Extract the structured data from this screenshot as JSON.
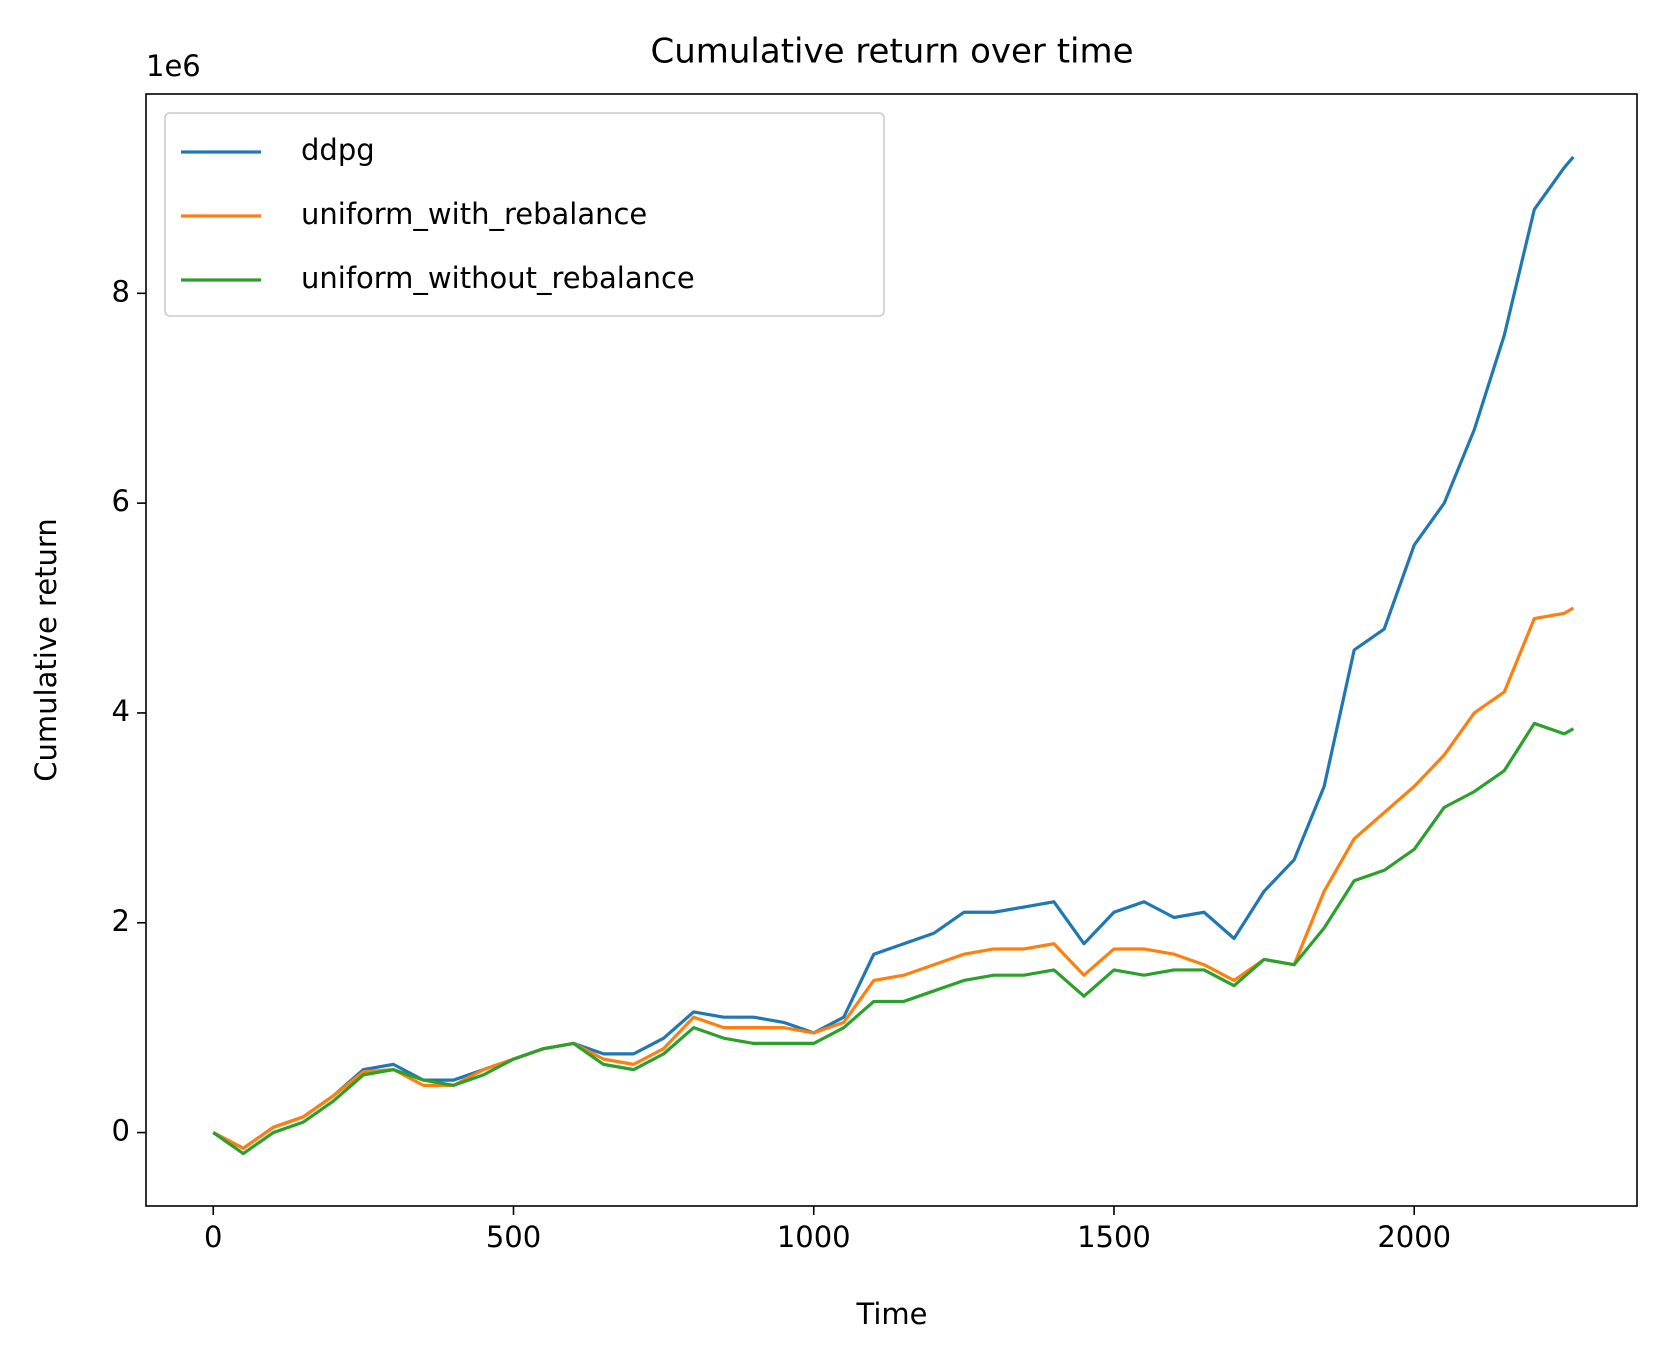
{
  "chart_data": {
    "type": "line",
    "title": "Cumulative return over time",
    "x_label": "Time",
    "y_label": "Cumulative return",
    "y_offset_label": "1e6",
    "x": [
      0,
      50,
      100,
      150,
      200,
      250,
      300,
      350,
      400,
      450,
      500,
      550,
      600,
      650,
      700,
      750,
      800,
      850,
      900,
      950,
      1000,
      1050,
      1100,
      1150,
      1200,
      1250,
      1300,
      1350,
      1400,
      1450,
      1500,
      1550,
      1600,
      1650,
      1700,
      1750,
      1800,
      1850,
      1900,
      1950,
      2000,
      2050,
      2100,
      2150,
      2200,
      2250,
      2265
    ],
    "series": [
      {
        "name": "ddpg",
        "color": "#1f77b4",
        "values": [
          0,
          -0.15,
          0.05,
          0.15,
          0.35,
          0.6,
          0.65,
          0.5,
          0.5,
          0.6,
          0.7,
          0.8,
          0.85,
          0.75,
          0.75,
          0.9,
          1.15,
          1.1,
          1.1,
          1.05,
          0.95,
          1.1,
          1.7,
          1.8,
          1.9,
          2.1,
          2.1,
          2.15,
          2.2,
          1.8,
          2.1,
          2.2,
          2.05,
          2.1,
          1.85,
          2.3,
          2.6,
          3.3,
          4.6,
          4.8,
          5.6,
          6.0,
          6.7,
          7.6,
          8.8,
          9.2,
          9.3
        ]
      },
      {
        "name": "uniform_with_rebalance",
        "color": "#ff7f0e",
        "values": [
          0,
          -0.15,
          0.05,
          0.15,
          0.35,
          0.58,
          0.6,
          0.45,
          0.45,
          0.6,
          0.7,
          0.8,
          0.85,
          0.7,
          0.65,
          0.8,
          1.1,
          1.0,
          1.0,
          1.0,
          0.95,
          1.05,
          1.45,
          1.5,
          1.6,
          1.7,
          1.75,
          1.75,
          1.8,
          1.5,
          1.75,
          1.75,
          1.7,
          1.6,
          1.45,
          1.65,
          1.6,
          2.3,
          2.8,
          3.05,
          3.3,
          3.6,
          4.0,
          4.2,
          4.9,
          4.95,
          5.0
        ]
      },
      {
        "name": "uniform_without_rebalance",
        "color": "#2ca02c",
        "values": [
          0,
          -0.2,
          0.0,
          0.1,
          0.3,
          0.55,
          0.6,
          0.5,
          0.45,
          0.55,
          0.7,
          0.8,
          0.85,
          0.65,
          0.6,
          0.75,
          1.0,
          0.9,
          0.85,
          0.85,
          0.85,
          1.0,
          1.25,
          1.25,
          1.35,
          1.45,
          1.5,
          1.5,
          1.55,
          1.3,
          1.55,
          1.5,
          1.55,
          1.55,
          1.4,
          1.65,
          1.6,
          1.95,
          2.4,
          2.5,
          2.7,
          3.1,
          3.25,
          3.45,
          3.9,
          3.8,
          3.85
        ]
      }
    ],
    "xlim": [
      -112,
      2371
    ],
    "ylim": [
      -0.7,
      9.9
    ],
    "xticks": [
      0,
      500,
      1000,
      1500,
      2000
    ],
    "yticks": [
      0,
      2,
      4,
      6,
      8
    ],
    "grid": false,
    "legend": "upper left"
  }
}
